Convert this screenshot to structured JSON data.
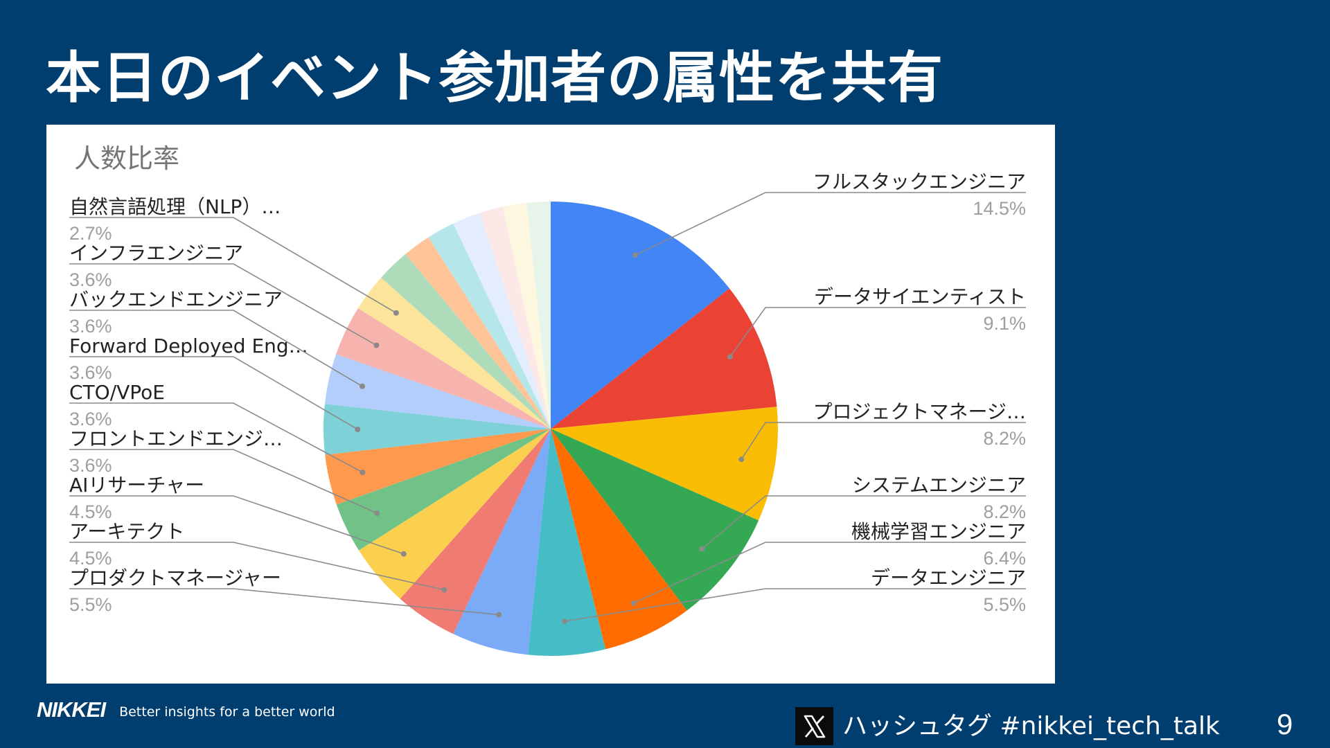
{
  "slide": {
    "title": "本日のイベント参加者の属性を共有",
    "page_number": "9"
  },
  "footer": {
    "brand": "NIKKEI",
    "tagline": "Better insights for a better world",
    "x_icon": "x-logo-icon",
    "hashtag": "ハッシュタグ #nikkei_tech_talk"
  },
  "chart_data": {
    "type": "pie",
    "title": "人数比率",
    "legend": "callout-labels",
    "slices": [
      {
        "label": "フルスタックエンジニア",
        "pct_label": "14.5%",
        "value": 14.5,
        "color": "#4285f4",
        "side": "right"
      },
      {
        "label": "データサイエンティスト",
        "pct_label": "9.1%",
        "value": 9.1,
        "color": "#ea4335",
        "side": "right"
      },
      {
        "label": "プロジェクトマネージ…",
        "pct_label": "8.2%",
        "value": 8.2,
        "color": "#fbbc04",
        "side": "right"
      },
      {
        "label": "システムエンジニア",
        "pct_label": "8.2%",
        "value": 8.2,
        "color": "#34a853",
        "side": "right"
      },
      {
        "label": "機械学習エンジニア",
        "pct_label": "6.4%",
        "value": 6.4,
        "color": "#ff6d01",
        "side": "right"
      },
      {
        "label": "データエンジニア",
        "pct_label": "5.5%",
        "value": 5.5,
        "color": "#46bdc6",
        "side": "right"
      },
      {
        "label": "プロダクトマネージャー",
        "pct_label": "5.5%",
        "value": 5.5,
        "color": "#7baaf7",
        "side": "left"
      },
      {
        "label": "アーキテクト",
        "pct_label": "4.5%",
        "value": 4.5,
        "color": "#f07b72",
        "side": "left"
      },
      {
        "label": "AIリサーチャー",
        "pct_label": "4.5%",
        "value": 4.5,
        "color": "#fcd04f",
        "side": "left"
      },
      {
        "label": "フロントエンドエンジ…",
        "pct_label": "3.6%",
        "value": 3.6,
        "color": "#71c287",
        "side": "left"
      },
      {
        "label": "CTO/VPoE",
        "pct_label": "3.6%",
        "value": 3.6,
        "color": "#ff994d",
        "side": "left"
      },
      {
        "label": "Forward Deployed Eng…",
        "pct_label": "3.6%",
        "value": 3.6,
        "color": "#7ed1d7",
        "side": "left"
      },
      {
        "label": "バックエンドエンジニア",
        "pct_label": "3.6%",
        "value": 3.6,
        "color": "#b3cefb",
        "side": "left"
      },
      {
        "label": "インフラエンジニア",
        "pct_label": "3.6%",
        "value": 3.6,
        "color": "#f7b4ae",
        "side": "left"
      },
      {
        "label": "自然言語処理（NLP）…",
        "pct_label": "2.7%",
        "value": 2.7,
        "color": "#fde49b",
        "side": "left"
      },
      {
        "label": "",
        "pct_label": "",
        "value": 2.4,
        "color": "#aedcba",
        "side": "none"
      },
      {
        "label": "",
        "pct_label": "",
        "value": 2.0,
        "color": "#ffc599",
        "side": "none"
      },
      {
        "label": "",
        "pct_label": "",
        "value": 2.0,
        "color": "#b5e6e9",
        "side": "none"
      },
      {
        "label": "",
        "pct_label": "",
        "value": 2.0,
        "color": "#e3edfd",
        "side": "none"
      },
      {
        "label": "",
        "pct_label": "",
        "value": 1.7,
        "color": "#fce8e6",
        "side": "none"
      },
      {
        "label": "",
        "pct_label": "",
        "value": 1.7,
        "color": "#fef7e0",
        "side": "none"
      },
      {
        "label": "",
        "pct_label": "",
        "value": 1.7,
        "color": "#e6f4ea",
        "side": "none"
      }
    ]
  }
}
